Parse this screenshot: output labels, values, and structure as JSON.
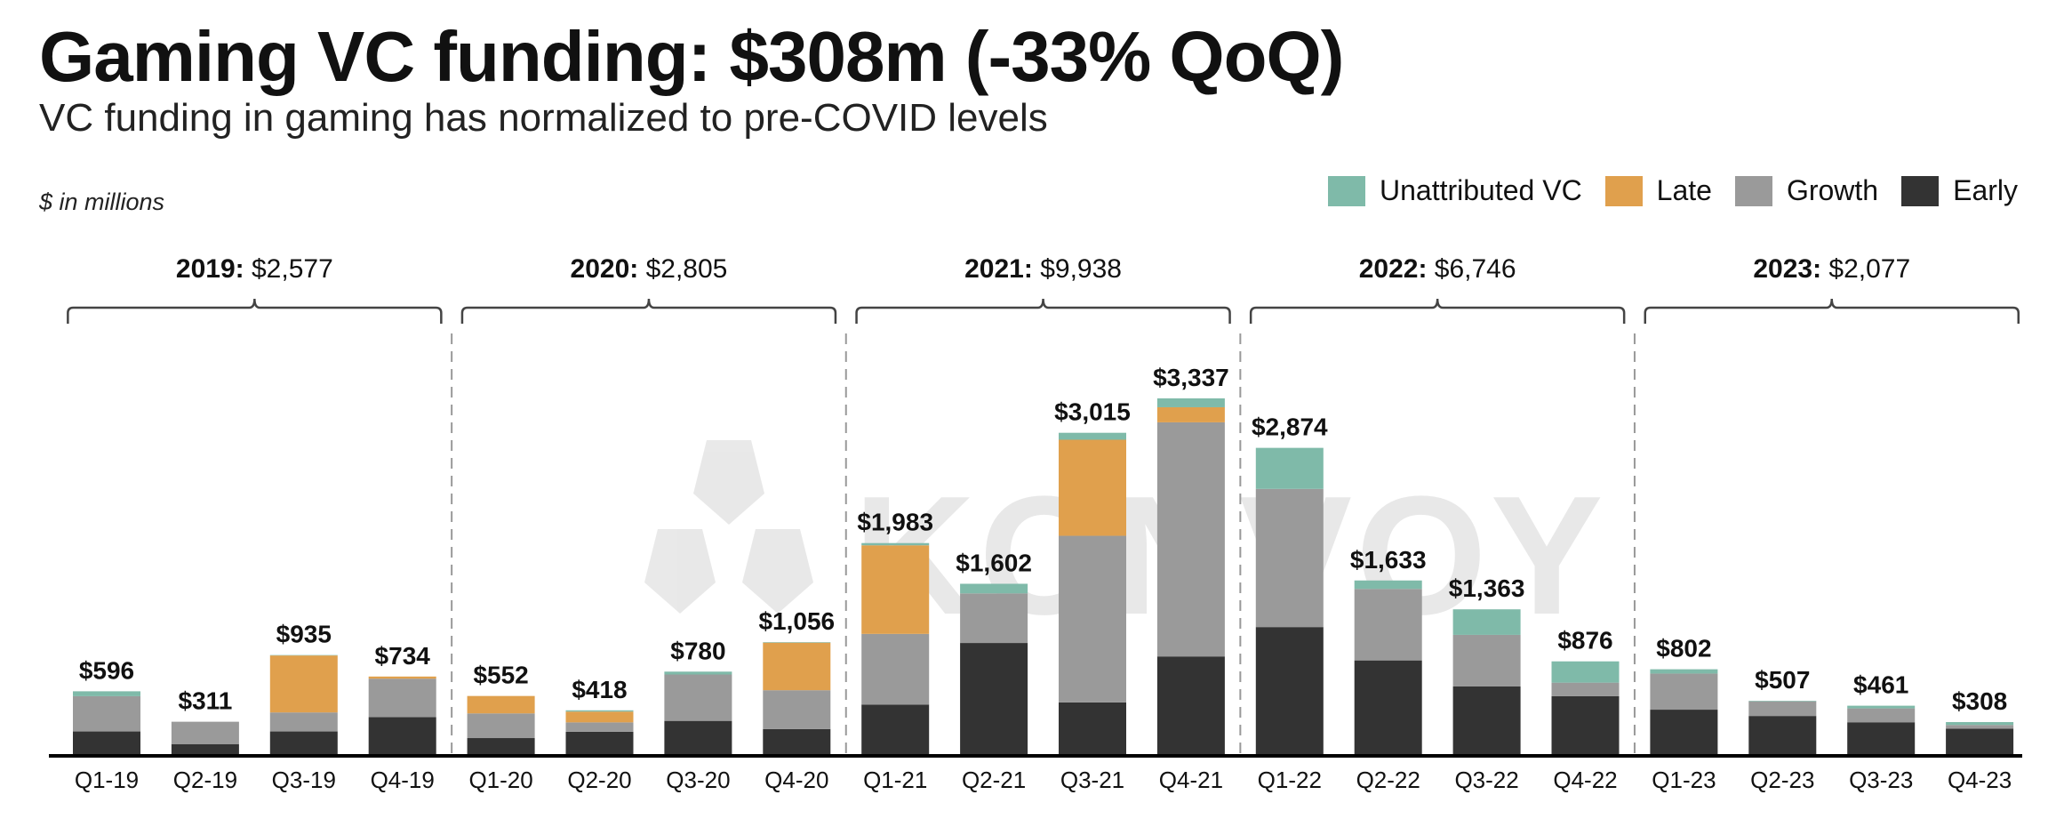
{
  "title": "Gaming VC funding: $308m (-33% QoQ)",
  "subtitle": "VC funding in gaming has normalized to pre-COVID levels",
  "units": "$ in millions",
  "watermark": "KONVOY",
  "colors": {
    "Unattributed VC": "#7fbaa9",
    "Late": "#e0a04d",
    "Growth": "#9a9a9a",
    "Early": "#333333"
  },
  "legend": [
    {
      "label": "Unattributed VC",
      "color": "#7fbaa9"
    },
    {
      "label": "Late",
      "color": "#e0a04d"
    },
    {
      "label": "Growth",
      "color": "#9a9a9a"
    },
    {
      "label": "Early",
      "color": "#333333"
    }
  ],
  "chart_data": {
    "type": "bar",
    "stacked": true,
    "title": "Gaming VC funding: $308m (-33% QoQ)",
    "subtitle": "VC funding in gaming has normalized to pre-COVID levels",
    "ylabel": "$ in millions",
    "ylim": [
      0,
      3400
    ],
    "grid": false,
    "legend_position": "top-right",
    "categories": [
      "Q1-19",
      "Q2-19",
      "Q3-19",
      "Q4-19",
      "Q1-20",
      "Q2-20",
      "Q3-20",
      "Q4-20",
      "Q1-21",
      "Q2-21",
      "Q3-21",
      "Q4-21",
      "Q1-22",
      "Q2-22",
      "Q3-22",
      "Q4-22",
      "Q1-23",
      "Q2-23",
      "Q3-23",
      "Q4-23"
    ],
    "totals": [
      "$596",
      "$311",
      "$935",
      "$734",
      "$552",
      "$418",
      "$780",
      "$1,056",
      "$1,983",
      "$1,602",
      "$3,015",
      "$3,337",
      "$2,874",
      "$1,633",
      "$1,363",
      "$876",
      "$802",
      "$507",
      "$461",
      "$308"
    ],
    "series": [
      {
        "name": "Early",
        "values": [
          220,
          102,
          220,
          355,
          158,
          217,
          319,
          243,
          472,
          1048,
          492,
          922,
          1197,
          885,
          641,
          551,
          424,
          365,
          306,
          247
        ]
      },
      {
        "name": "Growth",
        "values": [
          330,
          209,
          178,
          359,
          231,
          88,
          434,
          363,
          661,
          464,
          1559,
          2191,
          1293,
          669,
          483,
          126,
          338,
          137,
          130,
          34
        ]
      },
      {
        "name": "Late",
        "values": [
          0,
          0,
          533,
          20,
          163,
          101,
          0,
          445,
          829,
          0,
          899,
          141,
          0,
          0,
          0,
          0,
          0,
          0,
          0,
          0
        ]
      },
      {
        "name": "Unattributed VC",
        "values": [
          46,
          0,
          4,
          0,
          0,
          12,
          27,
          5,
          21,
          90,
          65,
          83,
          384,
          79,
          239,
          199,
          40,
          5,
          25,
          27
        ]
      }
    ],
    "year_groups": [
      {
        "year": "2019:",
        "total": "$2,577"
      },
      {
        "year": "2020:",
        "total": "$2,805"
      },
      {
        "year": "2021:",
        "total": "$9,938"
      },
      {
        "year": "2022:",
        "total": "$6,746"
      },
      {
        "year": "2023:",
        "total": "$2,077"
      }
    ]
  }
}
